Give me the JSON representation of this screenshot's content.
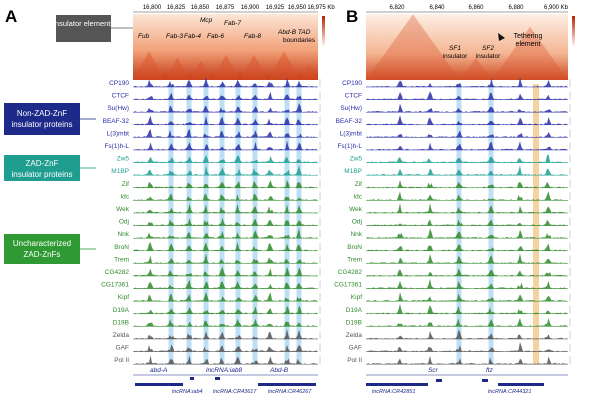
{
  "panel_a": {
    "letter": "A",
    "coords": [
      "16,800",
      "16,825",
      "16,850",
      "16,875",
      "16,900",
      "16,925",
      "16,950",
      "16,975 Kb"
    ],
    "hic_labels": [
      "Fub",
      "Fab-3",
      "Fab-4",
      "Mcp",
      "Fab-6",
      "Fab-7",
      "Fab-8",
      "Abd-B TAD",
      "boundaries"
    ],
    "gene_labels": [
      "abd-A",
      "lncRNA:iab8",
      "Abd-B"
    ],
    "lnc_labels": [
      "lncRNA:iab4",
      "lncRNA:CR43617",
      "lncRNA:CR46267"
    ]
  },
  "panel_b": {
    "letter": "B",
    "coords": [
      "6,820",
      "6,840",
      "6,860",
      "6,880",
      "6,900 Kb"
    ],
    "hic_labels": [
      "SF1",
      "insulator",
      "SF2",
      "insulator",
      "Tethering",
      "element"
    ],
    "gene_labels": [
      "Scr",
      "ftz"
    ],
    "lnc_labels": [
      "lncRNA:CR42851",
      "lncRNA:CR44321"
    ]
  },
  "categories": {
    "insulator_elements": "Insulator elements",
    "non_zad": [
      "Non-ZAD-ZnF",
      "insulator proteins"
    ],
    "zad": [
      "ZAD-ZnF",
      "insulator proteins"
    ],
    "uncharacterized": [
      "Uncharacterized",
      "ZAD-ZnFs"
    ]
  },
  "tracks": [
    {
      "name": "CP190",
      "group": "non_zad"
    },
    {
      "name": "CTCF",
      "group": "non_zad"
    },
    {
      "name": "Su(Hw)",
      "group": "non_zad"
    },
    {
      "name": "BEAF-32",
      "group": "non_zad"
    },
    {
      "name": "L(3)mbt",
      "group": "non_zad"
    },
    {
      "name": "Fs(1)h-L",
      "group": "non_zad"
    },
    {
      "name": "Zw5",
      "group": "zad"
    },
    {
      "name": "M1BP",
      "group": "zad"
    },
    {
      "name": "Zif",
      "group": "unch"
    },
    {
      "name": "Idc",
      "group": "unch"
    },
    {
      "name": "Wek",
      "group": "unch"
    },
    {
      "name": "Odj",
      "group": "unch"
    },
    {
      "name": "Nnk",
      "group": "unch"
    },
    {
      "name": "BroN",
      "group": "unch"
    },
    {
      "name": "Trem",
      "group": "unch"
    },
    {
      "name": "CG4282",
      "group": "unch"
    },
    {
      "name": "CG17361",
      "group": "unch"
    },
    {
      "name": "Kipf",
      "group": "unch"
    },
    {
      "name": "D19A",
      "group": "unch"
    },
    {
      "name": "D19B",
      "group": "unch"
    },
    {
      "name": "Zelda",
      "group": "other"
    },
    {
      "name": "GAF",
      "group": "other"
    },
    {
      "name": "Pol II",
      "group": "other"
    }
  ],
  "colors": {
    "non_zad": "#2a2fa8",
    "zad": "#1f9f92",
    "unch": "#2f8a2a",
    "other": "#555555",
    "non_zad_box": "#1d2a8a",
    "zad_box": "#1f9e90",
    "unch_box": "#2f9a33",
    "highlight": "#9fd2f0",
    "tether": "#f3c88a"
  }
}
